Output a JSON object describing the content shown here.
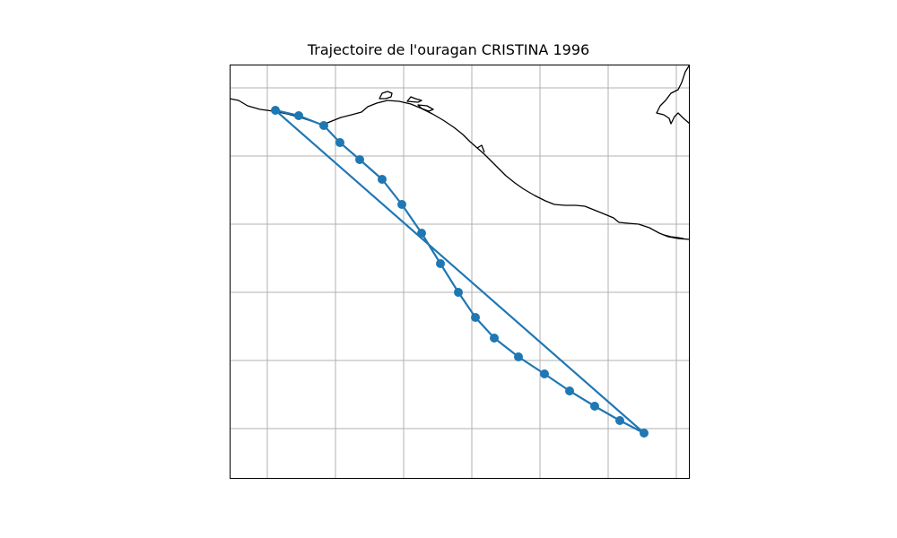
{
  "title": "Trajectoire de l'ouragan CRISTINA 1996",
  "map": {
    "gridlines": true,
    "axis_ticks_labeled": false,
    "colors": {
      "track": "#1f77b4",
      "coast": "#000000",
      "grid": "#b0b0b0",
      "frame": "#000000"
    }
  }
}
